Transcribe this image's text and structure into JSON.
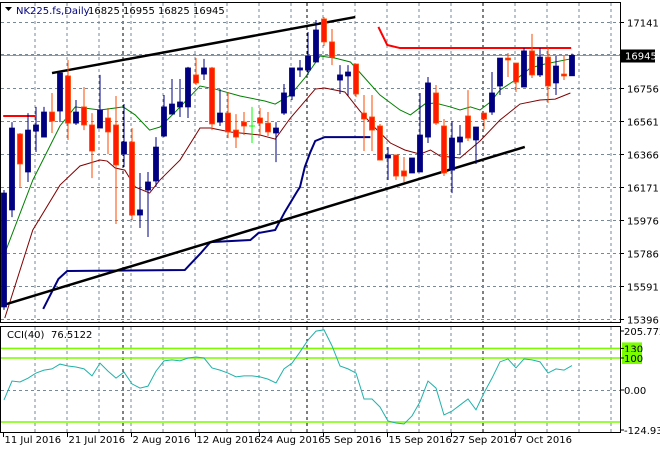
{
  "header": {
    "symbol_label": "NK225.fs,Daily",
    "ohlc_label": "16825 16955 16825 16945"
  },
  "cci_label": {
    "name": "CCI(40)",
    "value": "76.5122"
  },
  "colors": {
    "bull": "#000080",
    "bear": "#ff1a00",
    "bear_wick": "#ff4a00",
    "doji": "#00ff00",
    "ma_fast": "#008000",
    "ma_slow": "#800000",
    "lower_step": "#000080",
    "upper_step": "#ff0000",
    "trendline": "#000000",
    "cci": "#20b2aa",
    "cci_levels": "#7cfc00",
    "grid": "#778899"
  },
  "chart_data": [
    {
      "type": "candlestick",
      "title": "NK225.fs,Daily",
      "ylim": [
        15396,
        17141
      ],
      "grid": true,
      "y_ticks": [
        "17141",
        "16756",
        "16561",
        "16366",
        "16171",
        "15976",
        "15786",
        "15591",
        "15396"
      ],
      "y_tick_values": [
        17141,
        16756,
        16561,
        16366,
        16171,
        15976,
        15786,
        15591,
        15396
      ],
      "current_price": "16945",
      "x_ticks": [
        {
          "index": 0,
          "label": "11 Jul 2016"
        },
        {
          "index": 8,
          "label": "21 Jul 2016"
        },
        {
          "index": 16,
          "label": "2 Aug 2016"
        },
        {
          "index": 24,
          "label": "12 Aug 2016"
        },
        {
          "index": 32,
          "label": "24 Aug 2016"
        },
        {
          "index": 40,
          "label": "5 Sep 2016"
        },
        {
          "index": 48,
          "label": "15 Sep 2016"
        },
        {
          "index": 56,
          "label": "27 Sep 2016"
        },
        {
          "index": 64,
          "label": "7 Oct 2016"
        }
      ],
      "period_separators": [
        14.9,
        37.9,
        59.9
      ],
      "candles_ohlc": [
        [
          15467,
          16154,
          15450,
          16136
        ],
        [
          16037,
          16553,
          15995,
          16518
        ],
        [
          16483,
          16489,
          16172,
          16307
        ],
        [
          16260,
          16606,
          16201,
          16506
        ],
        [
          16500,
          16642,
          16377,
          16536
        ],
        [
          16465,
          16642,
          16465,
          16612
        ],
        [
          16612,
          16724,
          16489,
          16559
        ],
        [
          16618,
          16841,
          16553,
          16841
        ],
        [
          16824,
          16918,
          16448,
          16547
        ],
        [
          16547,
          16683,
          16536,
          16612
        ],
        [
          16642,
          16759,
          16506,
          16536
        ],
        [
          16536,
          16606,
          16224,
          16383
        ],
        [
          16518,
          16830,
          16518,
          16624
        ],
        [
          16577,
          16636,
          16365,
          16495
        ],
        [
          16536,
          16706,
          15954,
          16301
        ],
        [
          16365,
          16659,
          16289,
          16436
        ],
        [
          16436,
          16518,
          15978,
          16007
        ],
        [
          16007,
          16254,
          15931,
          16037
        ],
        [
          16154,
          16260,
          15878,
          16201
        ],
        [
          16207,
          16465,
          16172,
          16406
        ],
        [
          16471,
          16712,
          16465,
          16642
        ],
        [
          16600,
          16806,
          16600,
          16659
        ],
        [
          16642,
          16806,
          16583,
          16671
        ],
        [
          16642,
          16877,
          16577,
          16871
        ],
        [
          16830,
          16929,
          16771,
          16783
        ],
        [
          16835,
          16924,
          16800,
          16871
        ],
        [
          16871,
          16877,
          16506,
          16542
        ],
        [
          16553,
          16747,
          16530,
          16606
        ],
        [
          16606,
          16730,
          16459,
          16495
        ],
        [
          16506,
          16600,
          16401,
          16465
        ],
        [
          16553,
          16612,
          16477,
          16530
        ],
        [
          16530,
          16642,
          16430,
          16530
        ],
        [
          16577,
          16636,
          16477,
          16547
        ],
        [
          16547,
          16612,
          16471,
          16495
        ],
        [
          16489,
          16553,
          16318,
          16518
        ],
        [
          16606,
          16777,
          16595,
          16724
        ],
        [
          16706,
          16871,
          16683,
          16871
        ],
        [
          16859,
          16918,
          16818,
          16871
        ],
        [
          16859,
          17082,
          16830,
          16941
        ],
        [
          16906,
          17153,
          16906,
          17094
        ],
        [
          17159,
          17170,
          17000,
          17024
        ],
        [
          17024,
          17100,
          16888,
          16935
        ],
        [
          16800,
          16888,
          16718,
          16830
        ],
        [
          16824,
          16888,
          16706,
          16847
        ],
        [
          16894,
          16894,
          16700,
          16718
        ],
        [
          16606,
          16712,
          16383,
          16571
        ],
        [
          16583,
          16712,
          16383,
          16506
        ],
        [
          16530,
          16542,
          16330,
          16330
        ],
        [
          16342,
          16406,
          16213,
          16360
        ],
        [
          16360,
          16360,
          16213,
          16236
        ],
        [
          16266,
          16348,
          16201,
          16236
        ],
        [
          16254,
          16342,
          16254,
          16342
        ],
        [
          16260,
          16724,
          16260,
          16477
        ],
        [
          16465,
          16818,
          16430,
          16783
        ],
        [
          16724,
          16771,
          16536,
          16547
        ],
        [
          16530,
          16571,
          16236,
          16254
        ],
        [
          16271,
          16559,
          16136,
          16459
        ],
        [
          16436,
          16536,
          16360,
          16465
        ],
        [
          16589,
          16741,
          16442,
          16459
        ],
        [
          16448,
          16524,
          16307,
          16524
        ],
        [
          16606,
          16606,
          16512,
          16571
        ],
        [
          16612,
          16847,
          16595,
          16724
        ],
        [
          16765,
          16929,
          16712,
          16929
        ],
        [
          16929,
          16959,
          16818,
          16918
        ],
        [
          16900,
          16900,
          16730,
          16788
        ],
        [
          16759,
          16988,
          16759,
          16971
        ],
        [
          16971,
          17071,
          16812,
          16830
        ],
        [
          16830,
          16988,
          16818,
          16935
        ],
        [
          16935,
          16988,
          16665,
          16765
        ],
        [
          16783,
          16941,
          16712,
          16882
        ],
        [
          16835,
          16941,
          16800,
          16824
        ],
        [
          16825,
          16955,
          16825,
          16945
        ]
      ],
      "overlays": {
        "ma_fast": [
          [
            0,
            15770
          ],
          [
            3.6,
            16212
          ],
          [
            7,
            16530
          ],
          [
            8.9,
            16642
          ],
          [
            12,
            16624
          ],
          [
            13.9,
            16636
          ],
          [
            14.9,
            16642
          ],
          [
            16.4,
            16595
          ],
          [
            18.2,
            16506
          ],
          [
            19.5,
            16524
          ],
          [
            21.4,
            16612
          ],
          [
            24.5,
            16765
          ],
          [
            26.4,
            16747
          ],
          [
            29.5,
            16706
          ],
          [
            32.6,
            16677
          ],
          [
            33.9,
            16659
          ],
          [
            35.8,
            16712
          ],
          [
            37.6,
            16812
          ],
          [
            39.5,
            16941
          ],
          [
            41.4,
            16929
          ],
          [
            43.3,
            16906
          ],
          [
            45.1,
            16812
          ],
          [
            47,
            16712
          ],
          [
            49.5,
            16624
          ],
          [
            50.8,
            16595
          ],
          [
            52.6,
            16659
          ],
          [
            53.9,
            16665
          ],
          [
            55.8,
            16642
          ],
          [
            57,
            16624
          ],
          [
            58.3,
            16642
          ],
          [
            59.5,
            16624
          ],
          [
            60.8,
            16671
          ],
          [
            62,
            16741
          ],
          [
            63.9,
            16800
          ],
          [
            65.8,
            16871
          ],
          [
            67.6,
            16894
          ],
          [
            70.8,
            16924
          ]
        ],
        "ma_slow": [
          [
            0.1,
            15402
          ],
          [
            3.6,
            15919
          ],
          [
            7,
            16183
          ],
          [
            9.5,
            16295
          ],
          [
            12,
            16330
          ],
          [
            12.9,
            16324
          ],
          [
            13.9,
            16283
          ],
          [
            15.1,
            16271
          ],
          [
            16.4,
            16172
          ],
          [
            18.2,
            16136
          ],
          [
            19.5,
            16213
          ],
          [
            22,
            16330
          ],
          [
            24.5,
            16518
          ],
          [
            25.8,
            16518
          ],
          [
            28.3,
            16495
          ],
          [
            32,
            16477
          ],
          [
            33.9,
            16453
          ],
          [
            35.8,
            16577
          ],
          [
            37,
            16642
          ],
          [
            38.9,
            16747
          ],
          [
            40.1,
            16753
          ],
          [
            42.6,
            16730
          ],
          [
            44.5,
            16618
          ],
          [
            46.4,
            16518
          ],
          [
            48.3,
            16430
          ],
          [
            50.1,
            16389
          ],
          [
            52,
            16365
          ],
          [
            53.3,
            16389
          ],
          [
            54.5,
            16354
          ],
          [
            57,
            16342
          ],
          [
            59.5,
            16442
          ],
          [
            62,
            16565
          ],
          [
            64.5,
            16659
          ],
          [
            67,
            16683
          ],
          [
            68.9,
            16688
          ],
          [
            70.8,
            16724
          ]
        ],
        "lower_step": [
          [
            4.9,
            15455
          ],
          [
            6.8,
            15631
          ],
          [
            7.9,
            15678
          ],
          [
            22.6,
            15684
          ],
          [
            23.3,
            15719
          ],
          [
            24.5,
            15778
          ],
          [
            25.8,
            15848
          ],
          [
            30.8,
            15860
          ],
          [
            31.8,
            15901
          ],
          [
            33.9,
            15919
          ],
          [
            35.1,
            16025
          ],
          [
            36.6,
            16142
          ],
          [
            37,
            16172
          ],
          [
            37.6,
            16289
          ],
          [
            38.3,
            16377
          ],
          [
            38.9,
            16442
          ],
          [
            40.1,
            16465
          ],
          [
            45.8,
            16465
          ]
        ],
        "upper_step_1": [
          [
            -0.1,
            16589
          ],
          [
            3.9,
            16589
          ]
        ],
        "upper_step_2": [
          [
            46.8,
            17112
          ],
          [
            47.9,
            17006
          ],
          [
            49.5,
            16988
          ],
          [
            70.9,
            16988
          ]
        ],
        "trend_upper": [
          [
            6,
            16841
          ],
          [
            43.9,
            17170
          ]
        ],
        "trend_lower": [
          [
            -0.1,
            15478
          ],
          [
            65.1,
            16407
          ]
        ]
      }
    },
    {
      "type": "line",
      "title": "CCI(40) 76.5122",
      "ylim": [
        -124.933,
        205.7728
      ],
      "y_ticks": [
        "205.7728",
        "130",
        "100",
        "0.00",
        "-124.933"
      ],
      "levels": [
        130,
        100,
        -100
      ],
      "series": [
        {
          "name": "CCI(40)",
          "values": [
            -31,
            28,
            25,
            37,
            53,
            62,
            66,
            81,
            75,
            72,
            66,
            44,
            84,
            59,
            37,
            56,
            19,
            6,
            12,
            59,
            91,
            94,
            91,
            100,
            103,
            100,
            69,
            62,
            53,
            41,
            44,
            44,
            41,
            34,
            22,
            66,
            84,
            119,
            156,
            184,
            188,
            138,
            75,
            66,
            53,
            -28,
            -28,
            -53,
            -97,
            -103,
            -106,
            -81,
            -37,
            28,
            6,
            -78,
            -66,
            -47,
            -28,
            -62,
            -9,
            37,
            88,
            97,
            69,
            97,
            94,
            88,
            53,
            66,
            62,
            76.5
          ]
        }
      ]
    }
  ]
}
